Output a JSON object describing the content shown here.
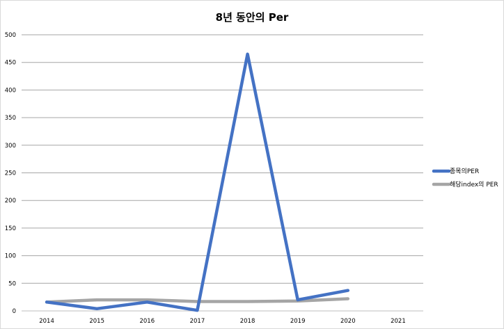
{
  "chart_data": {
    "type": "line",
    "title": "8년 동안의 Per",
    "categories": [
      "2014",
      "2015",
      "2016",
      "2017",
      "2018",
      "2019",
      "2020",
      "2021"
    ],
    "ylim": [
      0,
      500
    ],
    "yticks": [
      0,
      50,
      100,
      150,
      200,
      250,
      300,
      350,
      400,
      450,
      500
    ],
    "grid": true,
    "legend_position": "right",
    "series": [
      {
        "name": "종목의PER",
        "color": "#4472c4",
        "values": [
          16,
          4,
          16,
          1,
          465,
          20,
          37,
          null
        ]
      },
      {
        "name": "해당index의 PER",
        "color": "#a5a5a5",
        "values": [
          16,
          20,
          20,
          17,
          17,
          18,
          22,
          null
        ]
      }
    ]
  }
}
